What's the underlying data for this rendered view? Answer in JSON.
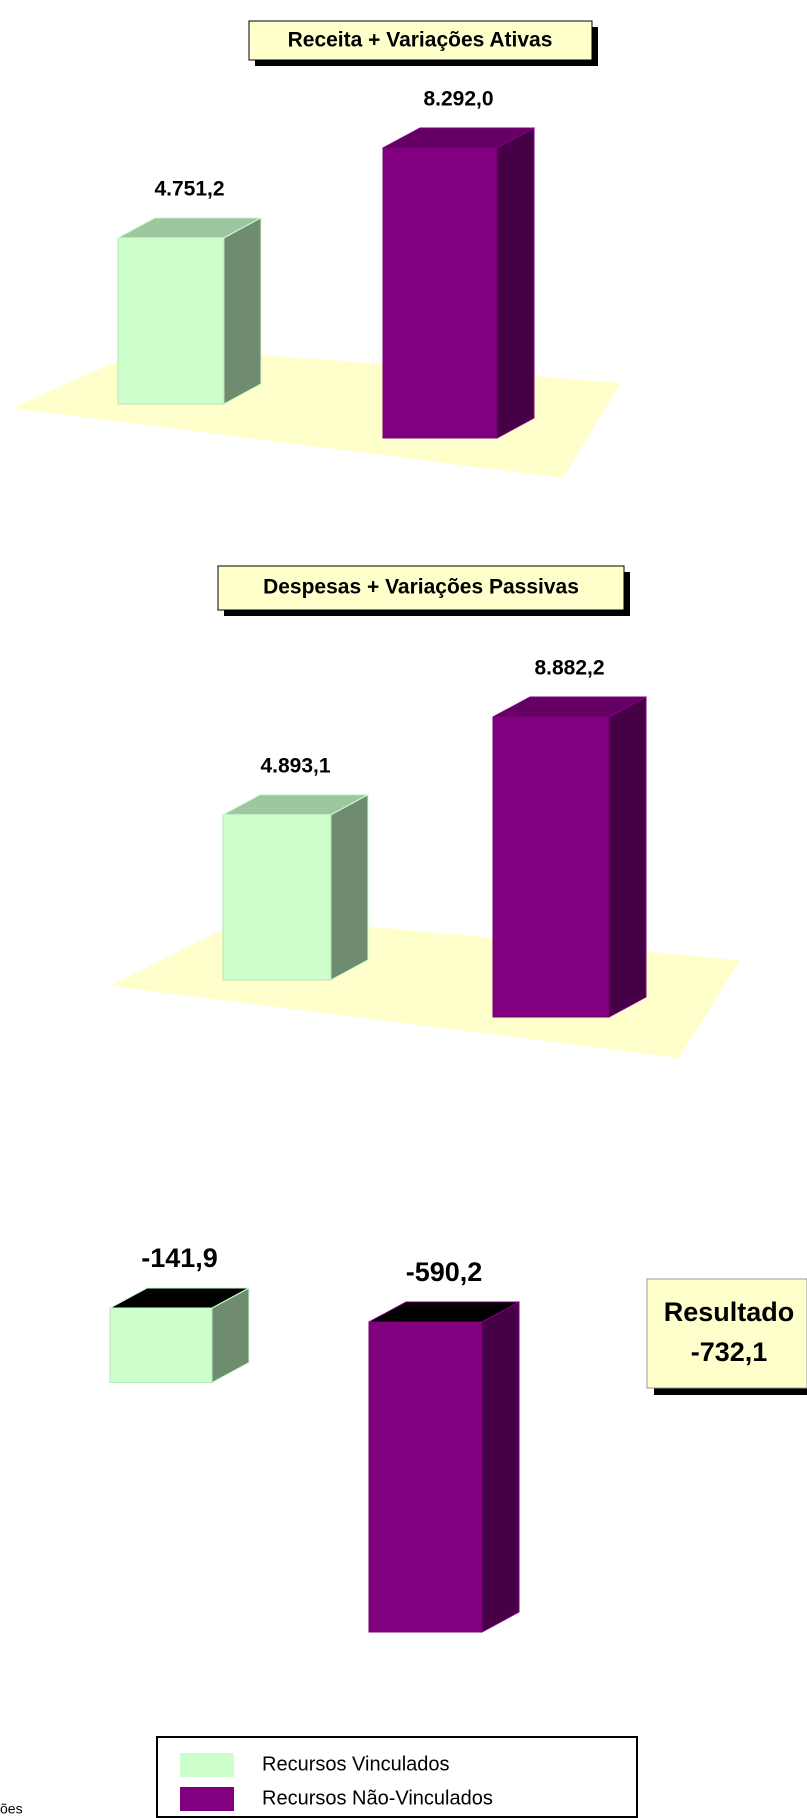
{
  "chart_data": [
    {
      "type": "bar",
      "title": "Receita + Variações Ativas",
      "series": [
        {
          "name": "Recursos Vinculados",
          "color": "#ccffcc",
          "values": [
            4751.2
          ],
          "value_labels": [
            "4.751,2"
          ]
        },
        {
          "name": "Recursos Não-Vinculados",
          "color": "#800080",
          "values": [
            8292.0
          ],
          "value_labels": [
            "8.292,0"
          ]
        }
      ]
    },
    {
      "type": "bar",
      "title": "Despesas + Variações Passivas",
      "series": [
        {
          "name": "Recursos Vinculados",
          "color": "#ccffcc",
          "values": [
            4893.1
          ],
          "value_labels": [
            "4.893,1"
          ]
        },
        {
          "name": "Recursos Não-Vinculados",
          "color": "#800080",
          "values": [
            8882.2
          ],
          "value_labels": [
            "8.882,2"
          ]
        }
      ]
    },
    {
      "type": "bar",
      "annotation": [
        "Resultado",
        "-732,1"
      ],
      "series": [
        {
          "name": "Recursos Vinculados",
          "color": "#ccffcc",
          "values": [
            -141.9
          ],
          "value_labels": [
            "-141,9"
          ]
        },
        {
          "name": "Recursos Não-Vinculados",
          "color": "#800080",
          "values": [
            -590.2
          ],
          "value_labels": [
            "-590,2"
          ]
        }
      ]
    }
  ],
  "footnote": "ões"
}
